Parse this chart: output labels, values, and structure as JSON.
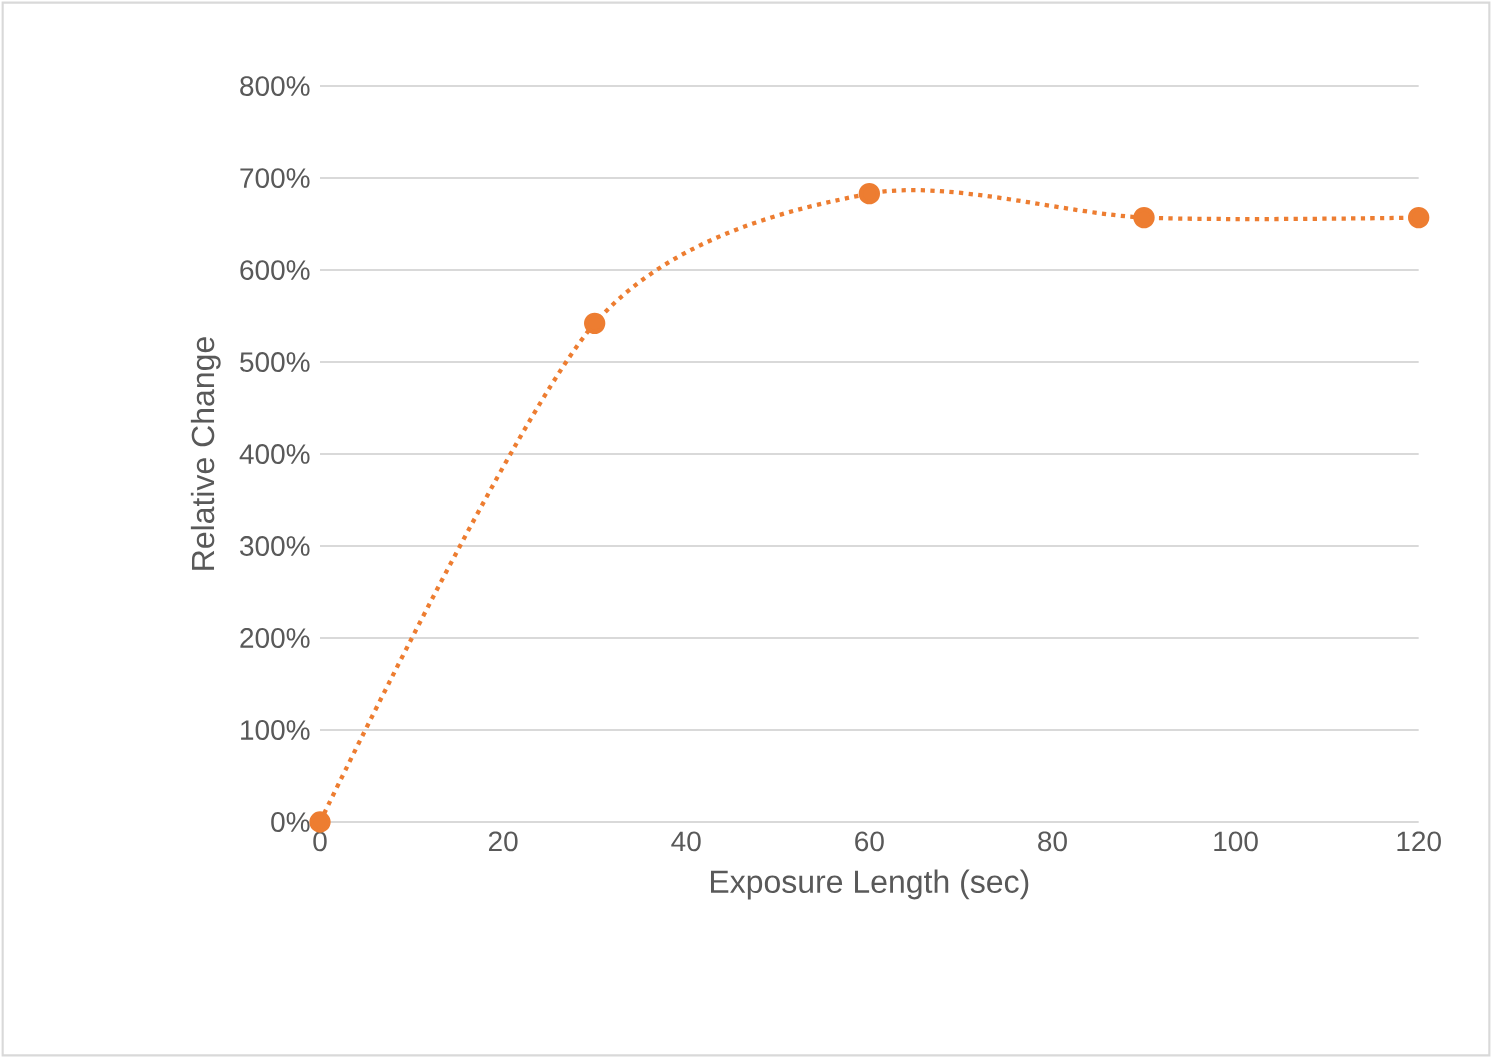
{
  "chart_data": {
    "type": "line",
    "xlabel": "Exposure Length (sec)",
    "ylabel": "Relative Change",
    "x": [
      0,
      30,
      60,
      90,
      120
    ],
    "series": [
      {
        "color": "#ed7d31",
        "values": [
          0,
          542,
          683,
          657,
          657
        ]
      }
    ],
    "xlim": [
      0,
      120
    ],
    "xticks": [
      0,
      20,
      40,
      60,
      80,
      100,
      120
    ],
    "ylim": [
      0,
      800
    ],
    "yticks": [
      {
        "value": 0,
        "label": "0%"
      },
      {
        "value": 100,
        "label": "100%"
      },
      {
        "value": 200,
        "label": "200%"
      },
      {
        "value": 300,
        "label": "300%"
      },
      {
        "value": 400,
        "label": "400%"
      },
      {
        "value": 500,
        "label": "500%"
      },
      {
        "value": 600,
        "label": "600%"
      },
      {
        "value": 700,
        "label": "700%"
      },
      {
        "value": 800,
        "label": "800%"
      }
    ],
    "grid": "y",
    "marker": "circle",
    "line_style": "dotted"
  }
}
